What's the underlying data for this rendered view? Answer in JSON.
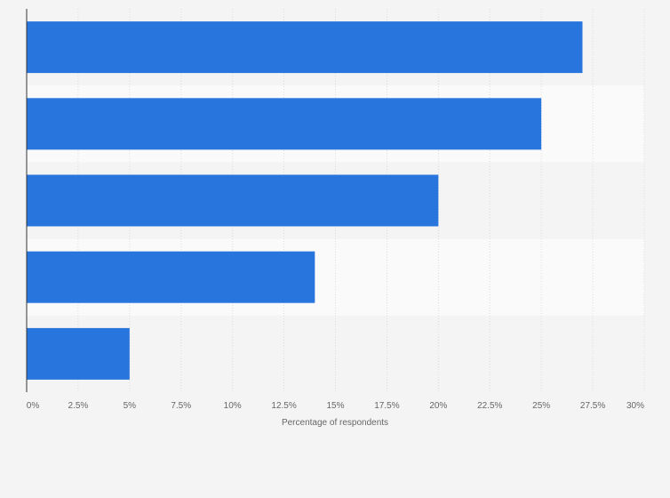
{
  "chart_data": {
    "type": "bar",
    "orientation": "horizontal",
    "categories": [
      "",
      "",
      "",
      "",
      ""
    ],
    "values": [
      27,
      25,
      20,
      14,
      5
    ],
    "title": "",
    "xlabel": "Percentage of respondents",
    "ylabel": "",
    "xlim": [
      0,
      30
    ],
    "ticks": [
      "0%",
      "2.5%",
      "5%",
      "7.5%",
      "10%",
      "12.5%",
      "15%",
      "17.5%",
      "20%",
      "22.5%",
      "25%",
      "27.5%",
      "30%"
    ],
    "grid": true,
    "legend": "none",
    "colors": {
      "bar": "#2876dd",
      "band_light": "#fafafa",
      "band_dark": "#f4f4f4",
      "grid": "#dcdcdc",
      "axis": "#333333"
    }
  }
}
